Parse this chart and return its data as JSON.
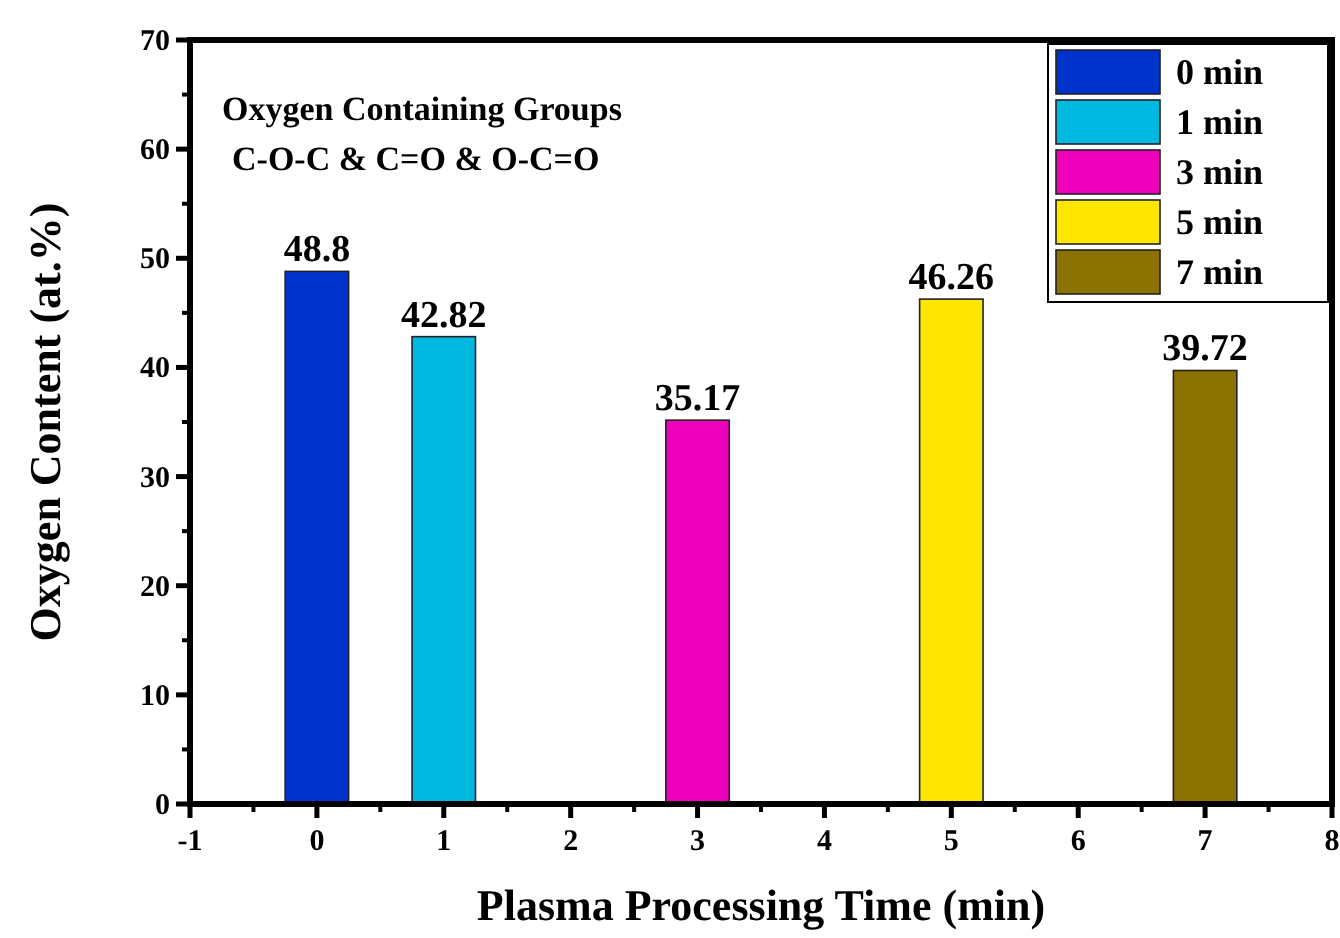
{
  "chart_data": {
    "type": "bar",
    "xlabel": "Plasma Processing Time (min)",
    "ylabel": "Oxygen Content (at.%)",
    "annotations": [
      "Oxygen Containing Groups",
      "C-O-C & C=O & O-C=O"
    ],
    "xlim": [
      -1,
      8
    ],
    "xticks": [
      -1,
      0,
      1,
      2,
      3,
      4,
      5,
      6,
      7,
      8
    ],
    "ylim": [
      0,
      70
    ],
    "yticks": [
      0,
      10,
      20,
      30,
      40,
      50,
      60,
      70
    ],
    "data_labels": true,
    "legend": "top right",
    "series": [
      {
        "name": "0 min",
        "color": "#0033cc",
        "x": [
          0
        ],
        "values": [
          48.8
        ]
      },
      {
        "name": "1 min",
        "color": "#00b8e0",
        "x": [
          1
        ],
        "values": [
          42.82
        ]
      },
      {
        "name": "3 min",
        "color": "#ee00bb",
        "x": [
          3
        ],
        "values": [
          35.17
        ]
      },
      {
        "name": "5 min",
        "color": "#ffe600",
        "x": [
          5
        ],
        "values": [
          46.26
        ]
      },
      {
        "name": "7 min",
        "color": "#8c7200",
        "x": [
          7
        ],
        "values": [
          39.72
        ]
      }
    ]
  }
}
